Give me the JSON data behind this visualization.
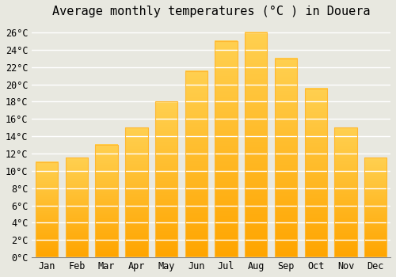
{
  "title": "Average monthly temperatures (°C ) in Douera",
  "months": [
    "Jan",
    "Feb",
    "Mar",
    "Apr",
    "May",
    "Jun",
    "Jul",
    "Aug",
    "Sep",
    "Oct",
    "Nov",
    "Dec"
  ],
  "temperatures": [
    11,
    11.5,
    13,
    15,
    18,
    21.5,
    25,
    26,
    23,
    19.5,
    15,
    11.5
  ],
  "bar_color_bottom": "#FFA500",
  "bar_color_top": "#FFD050",
  "bar_edge_color": "#FFB830",
  "background_color": "#E8E8E0",
  "grid_color": "#FFFFFF",
  "ylim": [
    0,
    27
  ],
  "yticks": [
    0,
    2,
    4,
    6,
    8,
    10,
    12,
    14,
    16,
    18,
    20,
    22,
    24,
    26
  ],
  "title_fontsize": 11,
  "tick_fontsize": 8.5,
  "font_family": "monospace"
}
